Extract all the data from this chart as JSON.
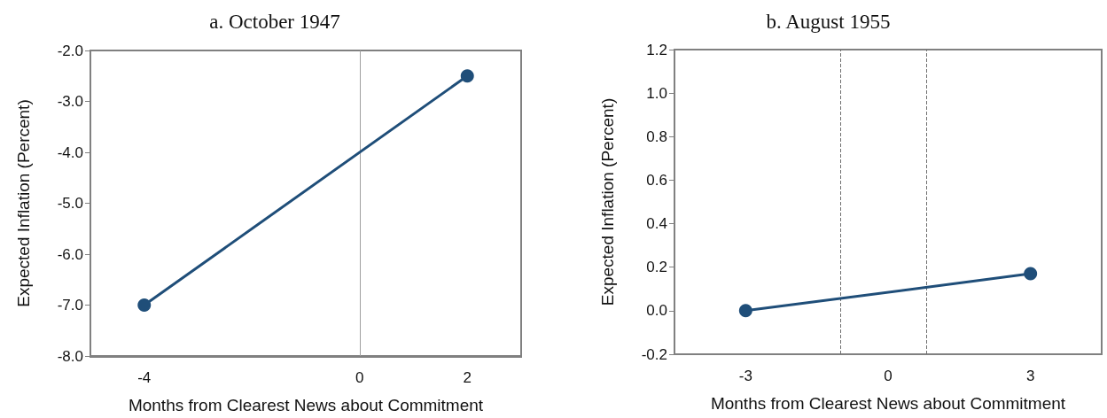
{
  "chart_data": [
    {
      "type": "line",
      "title": "a. October 1947",
      "xlabel": "Months from Clearest News about Commitment",
      "ylabel": "Expected Inflation (Percent)",
      "x": [
        -4,
        2
      ],
      "values": [
        -7.0,
        -2.5
      ],
      "color": "#1f4e79",
      "marker": "circle",
      "line_style": "solid",
      "xlim": [
        -5,
        3
      ],
      "xticks": [
        -4,
        0,
        2
      ],
      "ylim": [
        -8,
        -2
      ],
      "yticks": [
        {
          "value": -8,
          "label": "-8.0"
        },
        {
          "value": -7,
          "label": "-7.0"
        },
        {
          "value": -6,
          "label": "-6.0"
        },
        {
          "value": -5,
          "label": "-5.0"
        },
        {
          "value": -4,
          "label": "-4.0"
        },
        {
          "value": -3,
          "label": "-3.0"
        },
        {
          "value": -2,
          "label": "-2.0"
        }
      ],
      "ref_lines": [
        {
          "axis": "x",
          "value": 0,
          "color": "#a0a0a0",
          "line_style": "solid"
        }
      ]
    },
    {
      "type": "line",
      "title": "b. August 1955",
      "xlabel": "Months from Clearest News about Commitment",
      "ylabel": "Expected Inflation (Percent)",
      "x": [
        -3,
        3
      ],
      "values": [
        0.0,
        0.17
      ],
      "color": "#1f4e79",
      "marker": "circle",
      "line_style": "solid",
      "xlim": [
        -4.5,
        4.5
      ],
      "xticks": [
        -3,
        0,
        3
      ],
      "ylim": [
        -0.2,
        1.2
      ],
      "yticks": [
        {
          "value": -0.2,
          "label": "-0.2"
        },
        {
          "value": 0,
          "label": "0.0"
        },
        {
          "value": 0.2,
          "label": "0.2"
        },
        {
          "value": 0.4,
          "label": "0.4"
        },
        {
          "value": 0.6,
          "label": "0.6"
        },
        {
          "value": 0.8,
          "label": "0.8"
        },
        {
          "value": 1.0,
          "label": "1.0"
        },
        {
          "value": 1.2,
          "label": "1.2"
        }
      ],
      "ref_lines": [
        {
          "axis": "x",
          "value": -1,
          "color": "#707070",
          "line_style": "dashed"
        },
        {
          "axis": "x",
          "value": 0.8,
          "color": "#707070",
          "line_style": "dashed"
        }
      ]
    }
  ]
}
